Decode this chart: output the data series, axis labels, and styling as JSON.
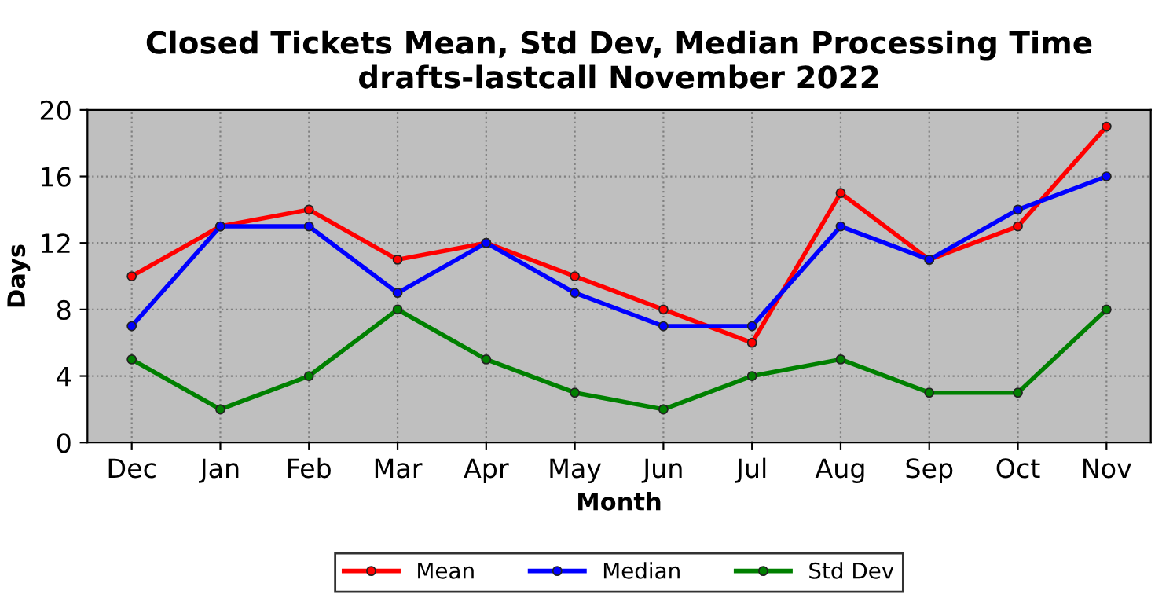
{
  "chart_data": {
    "type": "line",
    "title": "Closed Tickets Mean, Std Dev, Median Processing Time\ndrafts-lastcall November 2022",
    "xlabel": "Month",
    "ylabel": "Days",
    "categories": [
      "Dec",
      "Jan",
      "Feb",
      "Mar",
      "Apr",
      "May",
      "Jun",
      "Jul",
      "Aug",
      "Sep",
      "Oct",
      "Nov"
    ],
    "series": [
      {
        "name": "Mean",
        "color": "#ff0000",
        "values": [
          10,
          13,
          14,
          11,
          12,
          10,
          8,
          6,
          15,
          11,
          13,
          19
        ]
      },
      {
        "name": "Median",
        "color": "#0000ff",
        "values": [
          7,
          13,
          13,
          9,
          12,
          9,
          7,
          7,
          13,
          11,
          14,
          16
        ]
      },
      {
        "name": "Std Dev",
        "color": "#008000",
        "values": [
          5,
          2,
          4,
          8,
          5,
          3,
          2,
          4,
          5,
          3,
          3,
          8
        ]
      }
    ],
    "ylim": [
      0,
      20
    ],
    "yticks": [
      0,
      4,
      8,
      12,
      16,
      20
    ],
    "grid": true,
    "legend": "bottom",
    "marker": "circle",
    "line_style": "solid"
  }
}
